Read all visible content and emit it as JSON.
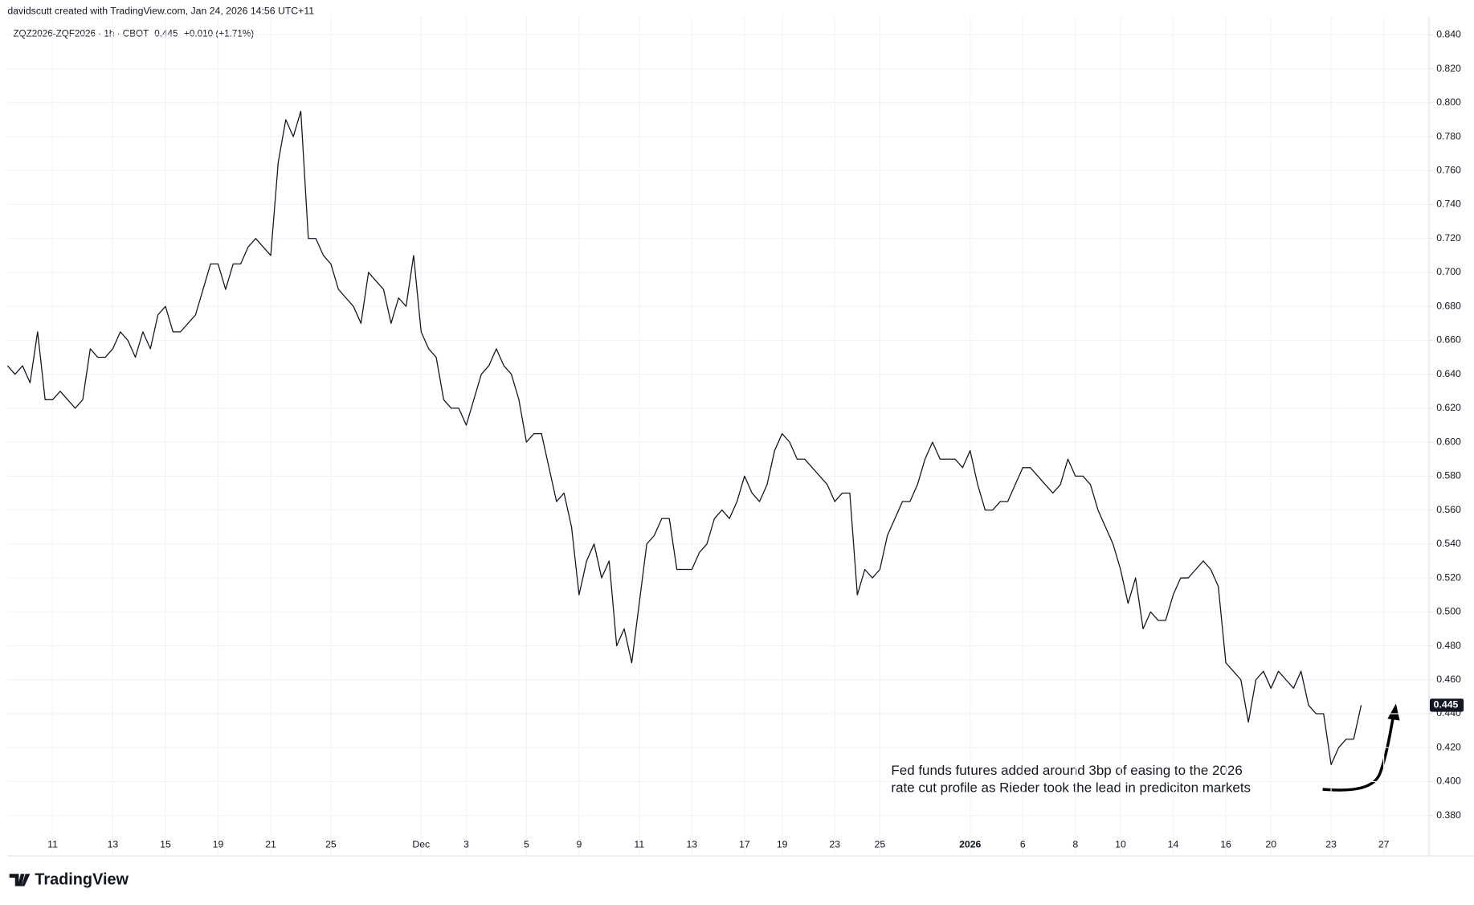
{
  "credit": "davidscutt created with TradingView.com, Jan 24, 2026 14:56 UTC+11",
  "brand": "TradingView",
  "chart_data": {
    "type": "line",
    "symbol": "ZQZ2026-ZQF2026 · 1h · CBOT",
    "last_price": {
      "value": 0.445,
      "label": "0.445"
    },
    "change": "+0.010 (+1.71%)",
    "annotation": [
      "Fed funds futures added around 3bp of easing to the 2026",
      "rate cut profile as Rieder took the lead in prediciton markets"
    ],
    "color": "#131722",
    "grid": true,
    "ylim": [
      0.37,
      0.8505
    ],
    "yticks": [
      {
        "value": 0.38,
        "label": "0.380"
      },
      {
        "value": 0.4,
        "label": "0.400"
      },
      {
        "value": 0.42,
        "label": "0.420"
      },
      {
        "value": 0.44,
        "label": "0.440"
      },
      {
        "value": 0.46,
        "label": "0.460"
      },
      {
        "value": 0.48,
        "label": "0.480"
      },
      {
        "value": 0.5,
        "label": "0.500"
      },
      {
        "value": 0.52,
        "label": "0.520"
      },
      {
        "value": 0.54,
        "label": "0.540"
      },
      {
        "value": 0.56,
        "label": "0.560"
      },
      {
        "value": 0.58,
        "label": "0.580"
      },
      {
        "value": 0.6,
        "label": "0.600"
      },
      {
        "value": 0.62,
        "label": "0.620"
      },
      {
        "value": 0.64,
        "label": "0.640"
      },
      {
        "value": 0.66,
        "label": "0.660"
      },
      {
        "value": 0.68,
        "label": "0.680"
      },
      {
        "value": 0.7,
        "label": "0.700"
      },
      {
        "value": 0.72,
        "label": "0.720"
      },
      {
        "value": 0.74,
        "label": "0.740"
      },
      {
        "value": 0.76,
        "label": "0.760"
      },
      {
        "value": 0.78,
        "label": "0.780"
      },
      {
        "value": 0.8,
        "label": "0.800"
      },
      {
        "value": 0.82,
        "label": "0.820"
      },
      {
        "value": 0.84,
        "label": "0.840"
      }
    ],
    "categories": [
      null,
      null,
      null,
      null,
      null,
      null,
      "11",
      null,
      null,
      null,
      null,
      null,
      null,
      null,
      "13",
      null,
      null,
      null,
      null,
      null,
      null,
      "15",
      null,
      null,
      null,
      null,
      null,
      null,
      "19",
      null,
      null,
      null,
      null,
      null,
      null,
      "21",
      null,
      null,
      null,
      null,
      null,
      null,
      null,
      "25",
      null,
      null,
      null,
      null,
      null,
      null,
      null,
      null,
      null,
      null,
      null,
      "Dec",
      null,
      null,
      null,
      null,
      null,
      "3",
      null,
      null,
      null,
      null,
      null,
      null,
      null,
      "5",
      null,
      null,
      null,
      null,
      null,
      null,
      "9",
      null,
      null,
      null,
      null,
      null,
      null,
      null,
      "11",
      null,
      null,
      null,
      null,
      null,
      null,
      "13",
      null,
      null,
      null,
      null,
      null,
      null,
      "17",
      null,
      null,
      null,
      null,
      "19",
      null,
      null,
      null,
      null,
      null,
      null,
      "23",
      null,
      null,
      null,
      null,
      null,
      "25",
      null,
      null,
      null,
      null,
      null,
      null,
      null,
      null,
      null,
      null,
      null,
      "2026",
      null,
      null,
      null,
      null,
      null,
      null,
      "6",
      null,
      null,
      null,
      null,
      null,
      null,
      "8",
      null,
      null,
      null,
      null,
      null,
      "10",
      null,
      null,
      null,
      null,
      null,
      null,
      "14",
      null,
      null,
      null,
      null,
      null,
      null,
      "16",
      null,
      null,
      null,
      null,
      null,
      "20",
      null,
      null,
      null,
      null,
      null,
      null,
      null,
      "23",
      null,
      null,
      null,
      null,
      null,
      null,
      "27"
    ],
    "values": [
      0.645,
      0.64,
      0.645,
      0.635,
      0.665,
      0.625,
      0.625,
      0.63,
      0.625,
      0.62,
      0.625,
      0.655,
      0.65,
      0.65,
      0.655,
      0.665,
      0.66,
      0.65,
      0.665,
      0.655,
      0.675,
      0.68,
      0.665,
      0.665,
      0.67,
      0.675,
      0.69,
      0.705,
      0.705,
      0.69,
      0.705,
      0.705,
      0.715,
      0.72,
      0.715,
      0.71,
      0.765,
      0.79,
      0.78,
      0.795,
      0.72,
      0.72,
      0.71,
      0.705,
      0.69,
      0.685,
      0.68,
      0.67,
      0.7,
      0.695,
      0.69,
      0.67,
      0.685,
      0.68,
      0.71,
      0.665,
      0.655,
      0.65,
      0.625,
      0.62,
      0.62,
      0.61,
      0.625,
      0.64,
      0.645,
      0.655,
      0.645,
      0.64,
      0.625,
      0.6,
      0.605,
      0.605,
      0.585,
      0.565,
      0.57,
      0.55,
      0.51,
      0.53,
      0.54,
      0.52,
      0.53,
      0.48,
      0.49,
      0.47,
      0.505,
      0.54,
      0.545,
      0.555,
      0.555,
      0.525,
      0.525,
      0.525,
      0.535,
      0.54,
      0.555,
      0.56,
      0.555,
      0.565,
      0.58,
      0.57,
      0.565,
      0.575,
      0.595,
      0.605,
      0.6,
      0.59,
      0.59,
      0.585,
      0.58,
      0.575,
      0.565,
      0.57,
      0.57,
      0.51,
      0.525,
      0.52,
      0.525,
      0.545,
      0.555,
      0.565,
      0.565,
      0.575,
      0.59,
      0.6,
      0.59,
      0.59,
      0.59,
      0.585,
      0.595,
      0.575,
      0.56,
      0.56,
      0.565,
      0.565,
      0.575,
      0.585,
      0.585,
      0.58,
      0.575,
      0.57,
      0.575,
      0.59,
      0.58,
      0.58,
      0.575,
      0.56,
      0.55,
      0.54,
      0.525,
      0.505,
      0.52,
      0.49,
      0.5,
      0.495,
      0.495,
      0.51,
      0.52,
      0.52,
      0.525,
      0.53,
      0.525,
      0.515,
      0.47,
      0.465,
      0.46,
      0.435,
      0.46,
      0.465,
      0.455,
      0.465,
      0.46,
      0.455,
      0.465,
      0.445,
      0.44,
      0.44,
      0.41,
      0.42,
      0.425,
      0.425,
      0.445,
      null,
      null,
      null
    ]
  }
}
